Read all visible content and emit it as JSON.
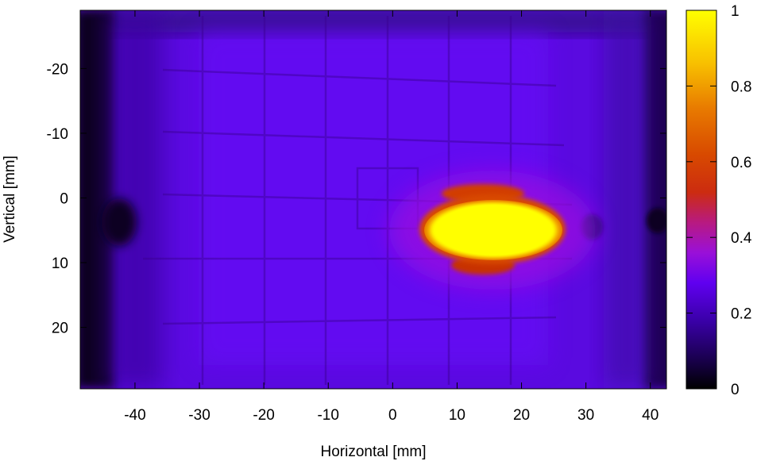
{
  "chart_data": {
    "type": "heatmap",
    "title": "",
    "xlabel": "Horizontal [mm]",
    "ylabel": "Vertical [mm]",
    "xlim": [
      -48.5,
      42.5
    ],
    "ylim": [
      -29,
      29.5
    ],
    "y_axis_inverted": true,
    "x_ticks": [
      -40,
      -30,
      -20,
      -10,
      0,
      10,
      20,
      30,
      40
    ],
    "y_ticks": [
      -20,
      -10,
      0,
      10,
      20
    ],
    "colorbar": {
      "range": [
        0,
        1
      ],
      "ticks": [
        0,
        0.2,
        0.4,
        0.6,
        0.8,
        1
      ],
      "tick_labels": [
        "0",
        "0.2",
        "0.4",
        "0.6",
        "0.8",
        "1"
      ],
      "colormap": "gnuplot-pm3d-rgbformulae-7-5-15",
      "color_stops": [
        "#000000",
        "#3a00a8",
        "#7a00ff",
        "#b21bb0",
        "#d23d00",
        "#e87a00",
        "#f8c000",
        "#ffff00"
      ]
    },
    "grid": false,
    "legend": "colorbar-right",
    "background_level": 0.17,
    "features": [
      {
        "kind": "hot-spot",
        "center": [
          14,
          5
        ],
        "half_width": [
          11,
          4.2
        ],
        "peak": 1.0
      },
      {
        "kind": "halo",
        "center": [
          14,
          0
        ],
        "half_width": [
          6,
          1.5
        ],
        "peak": 0.52
      },
      {
        "kind": "halo",
        "center": [
          14,
          11
        ],
        "half_width": [
          5,
          1.5
        ],
        "peak": 0.45
      },
      {
        "kind": "dark-edge",
        "x_range": [
          -48.5,
          -44
        ],
        "level": 0.02
      },
      {
        "kind": "dark-edge",
        "x_range": [
          39,
          42.5
        ],
        "level": 0.06
      },
      {
        "kind": "dark-band",
        "y_range": [
          -29,
          -25
        ],
        "level": 0.08
      }
    ]
  }
}
